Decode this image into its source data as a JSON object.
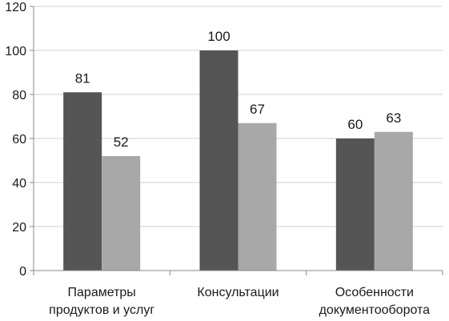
{
  "chart_data": {
    "type": "bar",
    "title": "",
    "xlabel": "",
    "ylabel": "",
    "categories": [
      [
        "Параметры",
        "продуктов и услуг"
      ],
      [
        "Консультации"
      ],
      [
        "Особенности",
        "документооборота"
      ]
    ],
    "series": [
      {
        "name": "",
        "color": "#555555",
        "values": [
          81,
          100,
          60
        ]
      },
      {
        "name": "",
        "color": "#a8a8a8",
        "values": [
          52,
          67,
          63
        ]
      }
    ],
    "ylim": [
      0,
      120
    ],
    "yticks": [
      0,
      20,
      40,
      60,
      80,
      100,
      120
    ],
    "grid": true,
    "grid_axis": "y",
    "legend": "none",
    "data_labels": true
  },
  "colors": {
    "grid": "#cfcfcf",
    "axis": "#8a8a8a",
    "text": "#1a1a1a"
  }
}
